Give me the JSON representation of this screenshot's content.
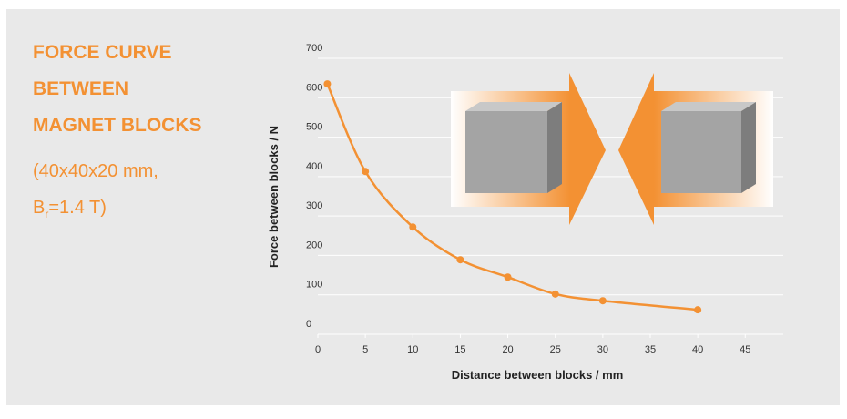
{
  "chart_data": {
    "type": "line",
    "title_lines": [
      "FORCE CURVE",
      "BETWEEN",
      "MAGNET BLOCKS"
    ],
    "subtitle_line": "(40x40x20 mm,",
    "subtitle_symbol": "B",
    "subtitle_subscript": "r",
    "subtitle_rest": "=1.4 T)",
    "x_label": "Distance between blocks / mm",
    "y_label": "Force between blocks / N",
    "x": [
      1,
      5,
      10,
      15,
      20,
      25,
      30,
      40
    ],
    "series": [
      {
        "color": "#f39133",
        "values": [
          635,
          413,
          272,
          189,
          145,
          102,
          85,
          62
        ]
      }
    ],
    "xlim": [
      0,
      49
    ],
    "xticks": [
      0,
      5,
      10,
      15,
      20,
      25,
      30,
      35,
      40,
      45
    ],
    "ylim": [
      0,
      700
    ],
    "yticks": [
      0,
      100,
      200,
      300,
      400,
      500,
      600,
      700
    ],
    "grid": true
  }
}
